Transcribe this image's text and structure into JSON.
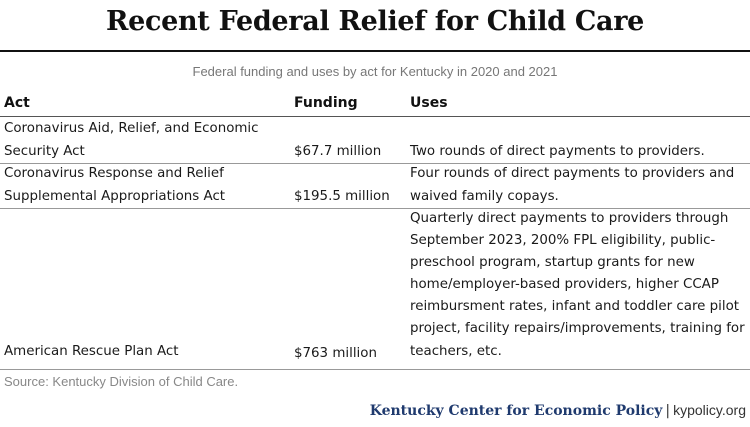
{
  "title": "Recent Federal Relief for Child Care",
  "subtitle": "Federal funding and uses by act for Kentucky in 2020 and 2021",
  "table": {
    "headers": {
      "act": "Act",
      "funding": "Funding",
      "uses": "Uses"
    },
    "rows": [
      {
        "act": [
          "Coronavirus Aid, Relief, and Economic",
          "Security Act"
        ],
        "funding": "$67.7 million",
        "uses": [
          "Two rounds of direct payments to providers."
        ]
      },
      {
        "act": [
          "Coronavirus Response and Relief",
          "Supplemental Appropriations Act"
        ],
        "funding": "$195.5 million",
        "uses": [
          "Four rounds of direct payments to providers and",
          "waived family copays."
        ]
      },
      {
        "act": [
          "American Rescue Plan Act"
        ],
        "funding": "$763 million",
        "uses": [
          "Quarterly direct payments to providers through",
          "September 2023, 200% FPL eligibility, public-",
          "preschool program, startup grants for new",
          "home/employer-based providers, higher CCAP",
          "reimbursment rates, infant and toddler care pilot",
          "project, facility repairs/improvements, training for",
          "teachers, etc."
        ]
      }
    ]
  },
  "source": "Source: Kentucky Division of Child Care.",
  "footer": {
    "organization": "Kentucky Center for Economic Policy",
    "separator": "|",
    "website": "kypolicy.org"
  },
  "colors": {
    "title": "#111111",
    "subtitle": "#777777",
    "footer_org": "#1f3a6e",
    "rules": "#999999"
  }
}
